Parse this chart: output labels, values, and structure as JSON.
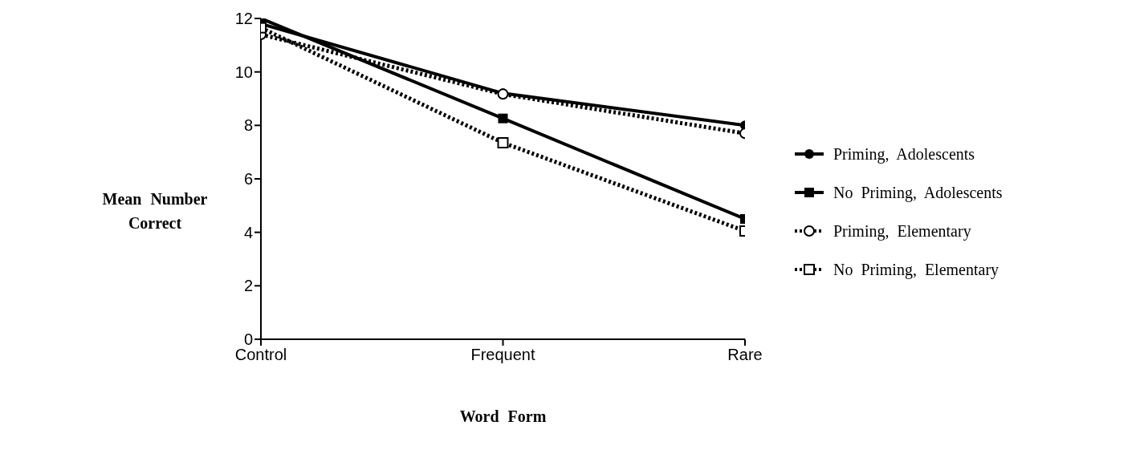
{
  "chart_data": {
    "type": "line",
    "xlabel": "Word Form",
    "ylabel": "Mean Number Correct",
    "categories": [
      "Control",
      "Frequent",
      "Rare"
    ],
    "series": [
      {
        "name": "Priming, Adolescents",
        "color": "#000000",
        "marker": "circle",
        "line_style": "solid",
        "values": [
          11.8,
          9.2,
          8.0
        ]
      },
      {
        "name": "No Priming, Adolescents",
        "color": "#000000",
        "marker": "square",
        "line_style": "solid",
        "values": [
          12.0,
          8.26,
          4.5
        ]
      },
      {
        "name": "Priming, Elementary",
        "color": "#000000",
        "marker": "circle",
        "line_style": "dotted",
        "values": [
          11.4,
          9.17,
          7.7
        ]
      },
      {
        "name": "No Priming, Elementary",
        "color": "#000000",
        "marker": "square",
        "line_style": "dotted",
        "values": [
          11.65,
          7.35,
          4.05
        ]
      }
    ],
    "ylim": [
      0,
      12
    ],
    "yticks": [
      0,
      2,
      4,
      6,
      8,
      10,
      12
    ],
    "grid": false,
    "legend": "right"
  }
}
